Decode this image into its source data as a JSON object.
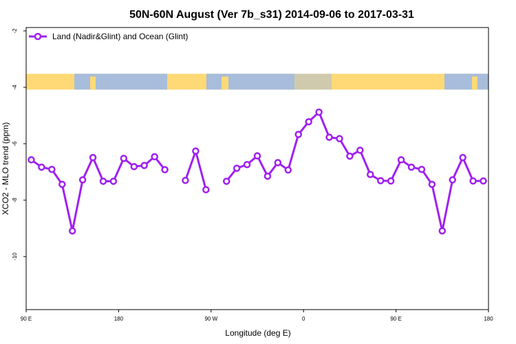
{
  "chart_data": {
    "type": "line",
    "title": "50N-60N August (Ver 7b_s31)   2014-09-06 to 2017-03-31",
    "xlabel": "Longitude (deg E)",
    "ylabel": "XCO2 - MLO trend (ppm)",
    "xlim": [
      90,
      540
    ],
    "ylim": [
      -11.88,
      -1.88
    ],
    "x_ticks": [
      90,
      180,
      270,
      360,
      450,
      540
    ],
    "x_tick_labels": [
      "90 E",
      "180",
      "90 W",
      "0",
      "90 E",
      "180"
    ],
    "y_ticks": [
      -2,
      -4,
      -6,
      -8,
      -10
    ],
    "y_tick_labels": [
      "-2",
      "-4",
      "-6",
      "-8",
      "-10"
    ],
    "grid": false,
    "legend": {
      "position": "top-left",
      "entries": [
        "Land (Nadir&Glint) and Ocean (Glint)"
      ]
    },
    "colors": {
      "series": "#A020F0",
      "land": "#FFD976",
      "ocean": "#A7BDDB"
    },
    "series": [
      {
        "name": "Land (Nadir&Glint) and Ocean (Glint)",
        "x": [
          95,
          105,
          115,
          125,
          135,
          145,
          155,
          165,
          175,
          185,
          195,
          205,
          215,
          225,
          235,
          245,
          255,
          265,
          275,
          285,
          295,
          305,
          315,
          325,
          335,
          345,
          355,
          365,
          375,
          385,
          395,
          405,
          415,
          425,
          435,
          445,
          455,
          465,
          475,
          485,
          495,
          505,
          515,
          525,
          535
        ],
        "values": [
          -6.57,
          -6.83,
          -6.91,
          -7.44,
          -9.09,
          -7.28,
          -6.49,
          -7.33,
          -7.33,
          -6.52,
          -6.81,
          -6.77,
          -6.46,
          -6.92,
          null,
          -7.3,
          -6.26,
          -7.63,
          null,
          -7.33,
          -6.87,
          -6.74,
          -6.43,
          -7.15,
          -6.67,
          -6.93,
          -5.67,
          -5.22,
          -4.88,
          -5.77,
          -5.82,
          -6.44,
          -6.23,
          -7.09,
          -7.31,
          -7.32,
          -6.57,
          -6.83,
          -6.91,
          -7.44,
          -9.09,
          -7.28,
          -6.49,
          -7.32,
          -7.32
        ]
      }
    ]
  }
}
